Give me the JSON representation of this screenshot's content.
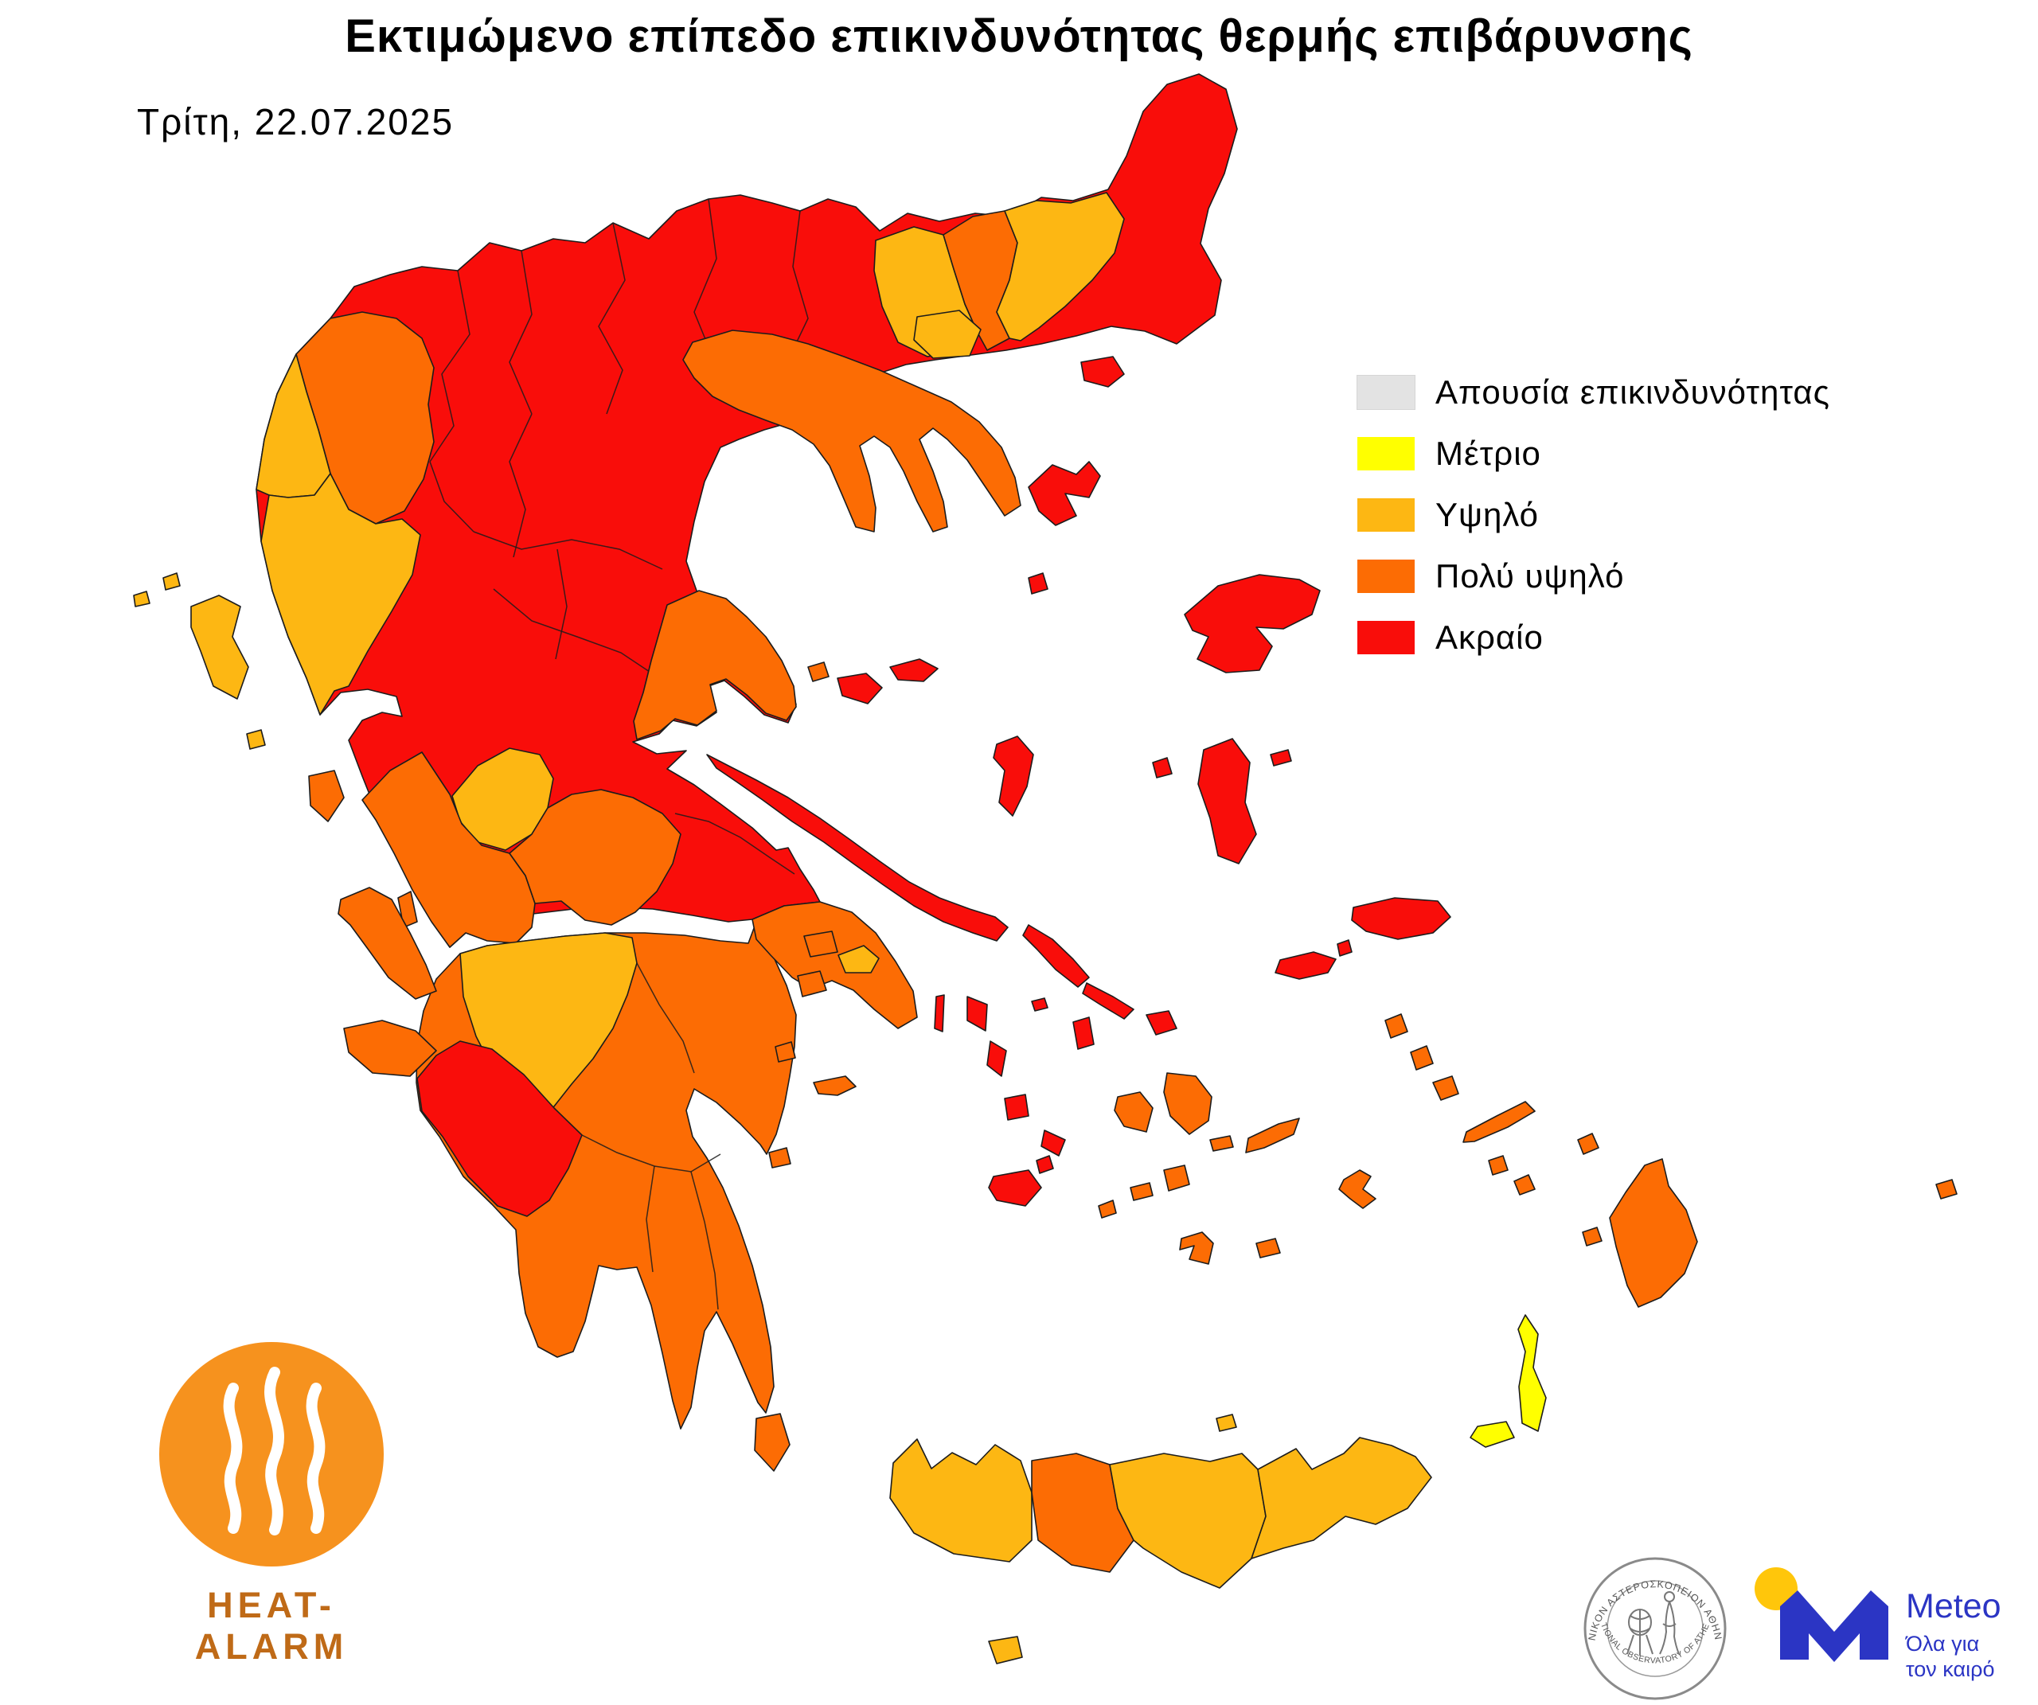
{
  "title": "Εκτιμώμενο επίπεδο επικινδυνότητας θερμής επιβάρυνσης",
  "date": "Τρίτη, 22.07.2025",
  "legend": {
    "items": [
      {
        "key": "none",
        "label": "Απουσία επικινδυνότητας",
        "color": "#e3e3e3"
      },
      {
        "key": "moderate",
        "label": "Μέτριο",
        "color": "#ffff00"
      },
      {
        "key": "high",
        "label": "Υψηλό",
        "color": "#fdb713"
      },
      {
        "key": "very_high",
        "label": "Πολύ υψηλό",
        "color": "#fc6c04"
      },
      {
        "key": "extreme",
        "label": "Ακραίο",
        "color": "#f90d0a"
      }
    ]
  },
  "map": {
    "regions": [
      {
        "id": "mainland-north",
        "level": "extreme"
      },
      {
        "id": "peloponnese",
        "level": "very_high"
      },
      {
        "id": "ioannina",
        "level": "very_high"
      },
      {
        "id": "thesprotia",
        "level": "high"
      },
      {
        "id": "preveza-arta",
        "level": "high"
      },
      {
        "id": "kavala",
        "level": "high"
      },
      {
        "id": "xanthi",
        "level": "very_high"
      },
      {
        "id": "rhodope",
        "level": "high"
      },
      {
        "id": "chalkidiki",
        "level": "very_high"
      },
      {
        "id": "magnesia",
        "level": "very_high"
      },
      {
        "id": "evrytania",
        "level": "high"
      },
      {
        "id": "etoloakarnania",
        "level": "very_high"
      },
      {
        "id": "fokida",
        "level": "very_high"
      },
      {
        "id": "attica",
        "level": "very_high"
      },
      {
        "id": "athens-basin",
        "level": "high"
      },
      {
        "id": "achaia",
        "level": "high"
      },
      {
        "id": "ilia",
        "level": "extreme"
      },
      {
        "id": "thasos",
        "level": "high"
      },
      {
        "id": "samothrace",
        "level": "extreme"
      },
      {
        "id": "evia",
        "level": "extreme"
      },
      {
        "id": "skiathos",
        "level": "very_high"
      },
      {
        "id": "skopelos",
        "level": "extreme"
      },
      {
        "id": "alonissos",
        "level": "extreme"
      },
      {
        "id": "skyros",
        "level": "extreme"
      },
      {
        "id": "limnos",
        "level": "extreme"
      },
      {
        "id": "agios-efstratios",
        "level": "extreme"
      },
      {
        "id": "lesvos",
        "level": "extreme"
      },
      {
        "id": "psara",
        "level": "extreme"
      },
      {
        "id": "oinousses",
        "level": "extreme"
      },
      {
        "id": "chios",
        "level": "extreme"
      },
      {
        "id": "samos",
        "level": "extreme"
      },
      {
        "id": "fourni",
        "level": "extreme"
      },
      {
        "id": "ikaria",
        "level": "extreme"
      },
      {
        "id": "corfu",
        "level": "high"
      },
      {
        "id": "corfu-islet-a",
        "level": "high"
      },
      {
        "id": "corfu-islet-b",
        "level": "high"
      },
      {
        "id": "paxoi",
        "level": "high"
      },
      {
        "id": "lefkada",
        "level": "very_high"
      },
      {
        "id": "ithaki",
        "level": "very_high"
      },
      {
        "id": "kefalonia",
        "level": "very_high"
      },
      {
        "id": "zakynthos",
        "level": "very_high"
      },
      {
        "id": "kythira",
        "level": "very_high"
      },
      {
        "id": "salamina",
        "level": "very_high"
      },
      {
        "id": "aegina",
        "level": "very_high"
      },
      {
        "id": "poros",
        "level": "very_high"
      },
      {
        "id": "hydra",
        "level": "very_high"
      },
      {
        "id": "spetses",
        "level": "very_high"
      },
      {
        "id": "makronisos",
        "level": "extreme"
      },
      {
        "id": "kea",
        "level": "extreme"
      },
      {
        "id": "gyaros",
        "level": "extreme"
      },
      {
        "id": "kythnos",
        "level": "extreme"
      },
      {
        "id": "serifos",
        "level": "extreme"
      },
      {
        "id": "sifnos",
        "level": "extreme"
      },
      {
        "id": "milos",
        "level": "extreme"
      },
      {
        "id": "kimolos",
        "level": "extreme"
      },
      {
        "id": "andros",
        "level": "extreme"
      },
      {
        "id": "tinos",
        "level": "extreme"
      },
      {
        "id": "mykonos",
        "level": "extreme"
      },
      {
        "id": "syros",
        "level": "extreme"
      },
      {
        "id": "paros",
        "level": "very_high"
      },
      {
        "id": "naxos",
        "level": "very_high"
      },
      {
        "id": "small-cyclades",
        "level": "very_high"
      },
      {
        "id": "ios",
        "level": "very_high"
      },
      {
        "id": "sikinos",
        "level": "very_high"
      },
      {
        "id": "folegandros",
        "level": "very_high"
      },
      {
        "id": "santorini",
        "level": "very_high"
      },
      {
        "id": "anafi",
        "level": "very_high"
      },
      {
        "id": "amorgos",
        "level": "very_high"
      },
      {
        "id": "astypalaia",
        "level": "very_high"
      },
      {
        "id": "patmos",
        "level": "very_high"
      },
      {
        "id": "leros",
        "level": "very_high"
      },
      {
        "id": "kalymnos",
        "level": "very_high"
      },
      {
        "id": "kos",
        "level": "very_high"
      },
      {
        "id": "nisyros",
        "level": "very_high"
      },
      {
        "id": "tilos",
        "level": "very_high"
      },
      {
        "id": "symi",
        "level": "very_high"
      },
      {
        "id": "chalki",
        "level": "very_high"
      },
      {
        "id": "rhodes",
        "level": "very_high"
      },
      {
        "id": "kastellorizo",
        "level": "very_high"
      },
      {
        "id": "karpathos",
        "level": "moderate"
      },
      {
        "id": "kasos",
        "level": "moderate"
      },
      {
        "id": "crete-chania",
        "level": "high"
      },
      {
        "id": "crete-rethymno",
        "level": "very_high"
      },
      {
        "id": "crete-heraklion",
        "level": "high"
      },
      {
        "id": "crete-lasithi",
        "level": "high"
      },
      {
        "id": "gavdos",
        "level": "high"
      },
      {
        "id": "dia",
        "level": "high"
      }
    ]
  },
  "branding": {
    "heat_alarm": {
      "label": "HEAT-ALARM",
      "circle_color": "#f6921e",
      "text_color": "#bf6a17"
    },
    "noa_seal": {
      "top_text": "ΕΘΝΙΚΟΝ ΑΣΤΕΡΟΣΚΟΠΕΙΟΝ ΑΘΗΝΩΝ",
      "bottom_text": "NATIONAL OBSERVATORY OF ATHENS"
    },
    "meteo": {
      "name": "Meteo",
      "tagline_line1": "Όλα για",
      "tagline_line2": "τον καιρό",
      "blue": "#2b35c4",
      "yellow": "#ffc60b"
    }
  }
}
